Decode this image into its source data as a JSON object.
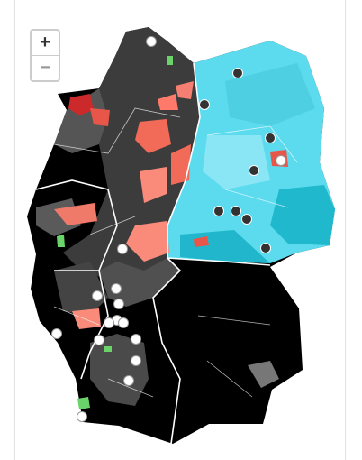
{
  "zoom_controls": {
    "zoom_in": "+",
    "zoom_out": "−"
  }
}
